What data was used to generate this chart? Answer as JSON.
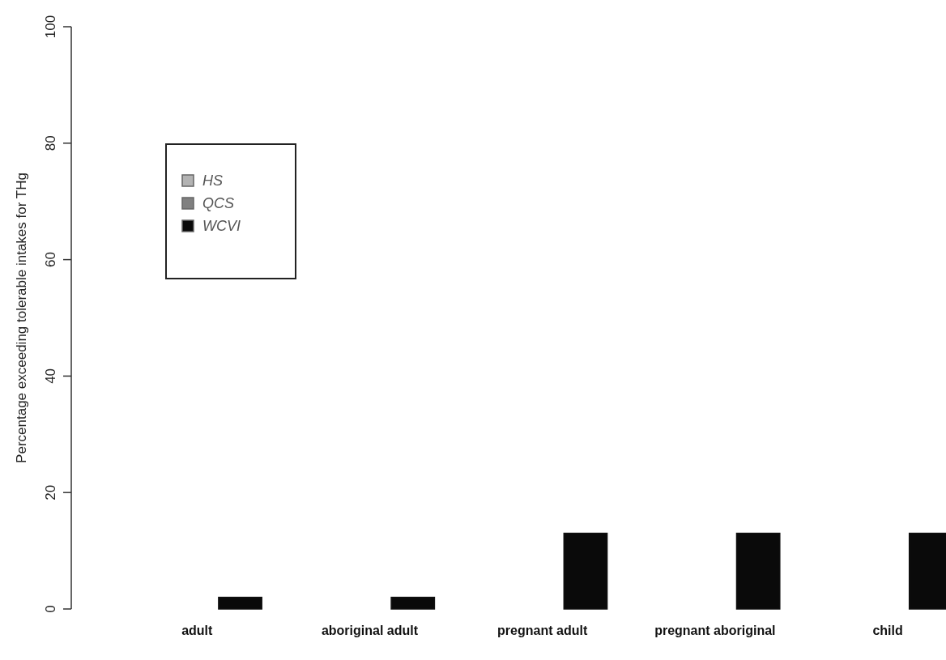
{
  "chart_data": {
    "type": "bar",
    "ylabel": "Percentage exceeding tolerable intakes for THg",
    "categories": [
      "adult",
      "aboriginal adult",
      "pregnant adult",
      "pregnant aboriginal",
      "child"
    ],
    "series": [
      {
        "name": "HS",
        "color": "#b3b3b3",
        "values": [
          0,
          0,
          0,
          0,
          0
        ]
      },
      {
        "name": "QCS",
        "color": "#808080",
        "values": [
          0,
          0,
          0,
          0,
          0
        ]
      },
      {
        "name": "WCVI",
        "color": "#0a0a0a",
        "values": [
          2,
          2,
          13,
          13,
          13
        ]
      }
    ],
    "ylim": [
      0,
      100
    ],
    "yticks": [
      0,
      20,
      40,
      60,
      80,
      100
    ],
    "legend": "top left",
    "grid": false
  }
}
